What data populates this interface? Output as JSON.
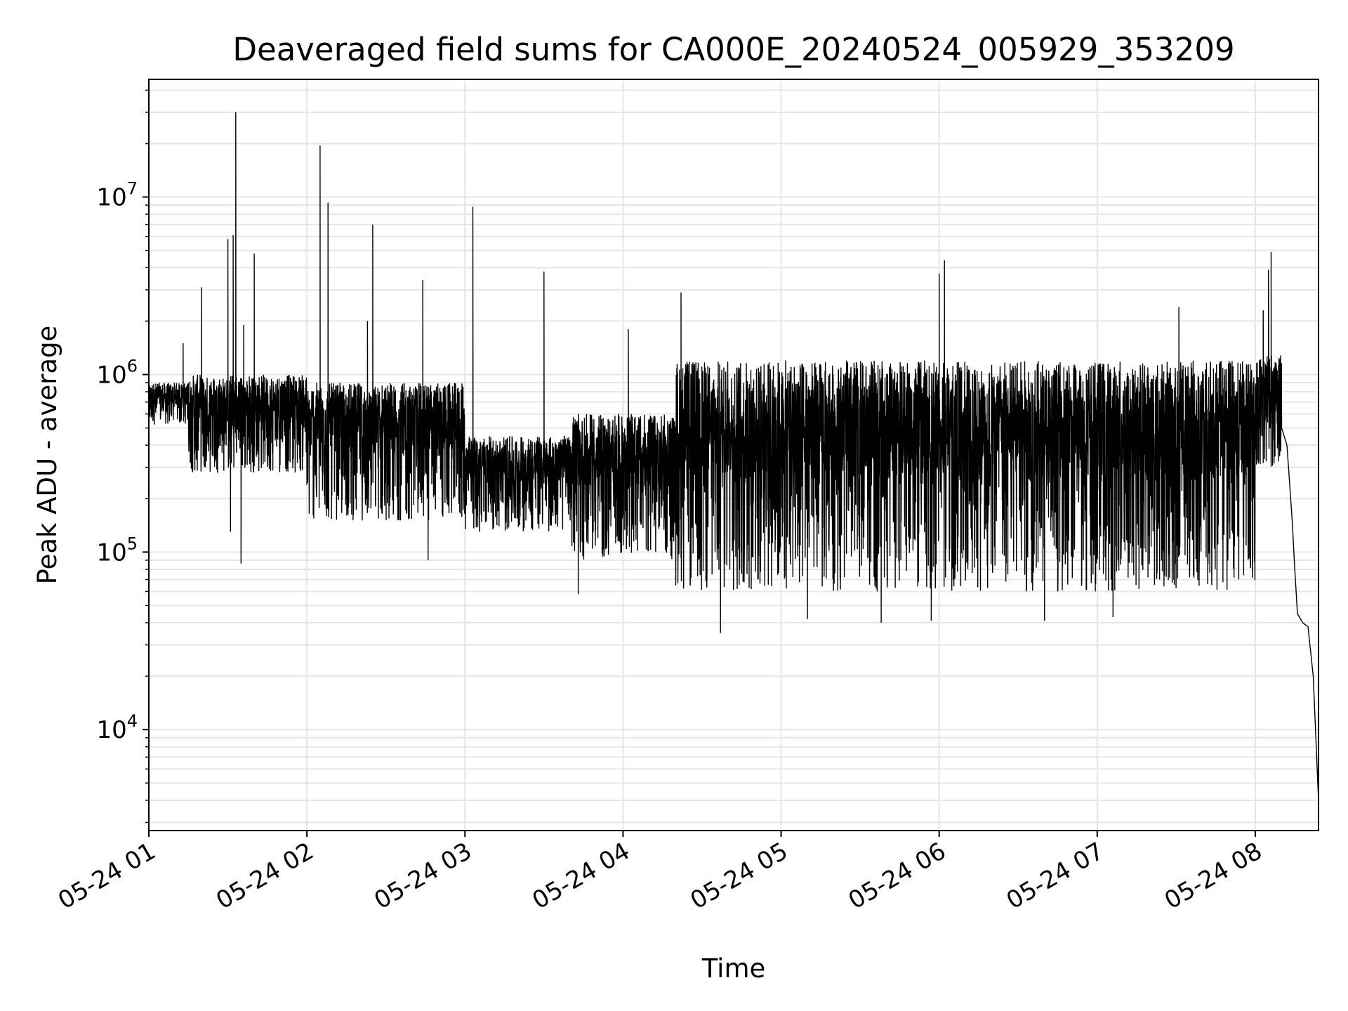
{
  "chart_data": {
    "type": "line",
    "title": "Deaveraged field sums for CA000E_20240524_005929_353209",
    "xlabel": "Time",
    "ylabel": "Peak ADU - average",
    "yscale": "log",
    "xlim": [
      "2024-05-24 01:00",
      "2024-05-24 08:24"
    ],
    "ylim": [
      2700,
      46000000
    ],
    "grid": true,
    "x_ticks": [
      "05-24 01",
      "05-24 02",
      "05-24 03",
      "05-24 04",
      "05-24 05",
      "05-24 06",
      "05-24 07",
      "05-24 08"
    ],
    "y_ticks": [
      {
        "base": "10",
        "exp": "4",
        "value": 10000
      },
      {
        "base": "10",
        "exp": "5",
        "value": 100000
      },
      {
        "base": "10",
        "exp": "6",
        "value": 1000000
      },
      {
        "base": "10",
        "exp": "7",
        "value": 10000000
      }
    ],
    "line_color": "#000000",
    "series": [
      {
        "segments": [
          {
            "from": "2024-05-24 01:00",
            "to": "2024-05-24 01:15",
            "low": 520000,
            "high": 900000
          },
          {
            "from": "2024-05-24 01:15",
            "to": "2024-05-24 02:00",
            "low": 280000,
            "high": 1000000
          },
          {
            "from": "2024-05-24 02:00",
            "to": "2024-05-24 03:00",
            "low": 150000,
            "high": 900000
          },
          {
            "from": "2024-05-24 03:00",
            "to": "2024-05-24 03:40",
            "low": 130000,
            "high": 450000
          },
          {
            "from": "2024-05-24 03:40",
            "to": "2024-05-24 04:20",
            "low": 90000,
            "high": 600000
          },
          {
            "from": "2024-05-24 04:20",
            "to": "2024-05-24 08:00",
            "low": 60000,
            "high": 1200000
          },
          {
            "from": "2024-05-24 08:00",
            "to": "2024-05-24 08:10",
            "low": 300000,
            "high": 1300000
          }
        ],
        "spikes": [
          {
            "x": "2024-05-24 01:13",
            "y": 1500000
          },
          {
            "x": "2024-05-24 01:20",
            "y": 3100000
          },
          {
            "x": "2024-05-24 01:30",
            "y": 5800000
          },
          {
            "x": "2024-05-24 01:32",
            "y": 6100000
          },
          {
            "x": "2024-05-24 01:33",
            "y": 30000000
          },
          {
            "x": "2024-05-24 01:36",
            "y": 1900000
          },
          {
            "x": "2024-05-24 01:40",
            "y": 4800000
          },
          {
            "x": "2024-05-24 02:05",
            "y": 19500000
          },
          {
            "x": "2024-05-24 02:08",
            "y": 9300000
          },
          {
            "x": "2024-05-24 02:23",
            "y": 2000000
          },
          {
            "x": "2024-05-24 02:25",
            "y": 7000000
          },
          {
            "x": "2024-05-24 02:44",
            "y": 3400000
          },
          {
            "x": "2024-05-24 03:03",
            "y": 8800000
          },
          {
            "x": "2024-05-24 03:30",
            "y": 3800000
          },
          {
            "x": "2024-05-24 04:02",
            "y": 1800000
          },
          {
            "x": "2024-05-24 04:22",
            "y": 2900000
          },
          {
            "x": "2024-05-24 06:00",
            "y": 3700000
          },
          {
            "x": "2024-05-24 06:02",
            "y": 4400000
          },
          {
            "x": "2024-05-24 07:31",
            "y": 2400000
          },
          {
            "x": "2024-05-24 08:03",
            "y": 2300000
          },
          {
            "x": "2024-05-24 08:05",
            "y": 3900000
          },
          {
            "x": "2024-05-24 08:06",
            "y": 4900000
          }
        ],
        "dips": [
          {
            "x": "2024-05-24 01:31",
            "y": 130000
          },
          {
            "x": "2024-05-24 01:35",
            "y": 86000
          },
          {
            "x": "2024-05-24 02:46",
            "y": 90000
          },
          {
            "x": "2024-05-24 03:43",
            "y": 58000
          },
          {
            "x": "2024-05-24 04:37",
            "y": 35000
          },
          {
            "x": "2024-05-24 05:10",
            "y": 42000
          },
          {
            "x": "2024-05-24 05:38",
            "y": 40000
          },
          {
            "x": "2024-05-24 05:57",
            "y": 41000
          },
          {
            "x": "2024-05-24 06:40",
            "y": 41000
          },
          {
            "x": "2024-05-24 07:06",
            "y": 43000
          }
        ],
        "tail": [
          {
            "x": "2024-05-24 08:08",
            "y": 800000
          },
          {
            "x": "2024-05-24 08:10",
            "y": 500000
          },
          {
            "x": "2024-05-24 08:12",
            "y": 400000
          },
          {
            "x": "2024-05-24 08:13",
            "y": 250000
          },
          {
            "x": "2024-05-24 08:14",
            "y": 150000
          },
          {
            "x": "2024-05-24 08:15",
            "y": 80000
          },
          {
            "x": "2024-05-24 08:16",
            "y": 45000
          },
          {
            "x": "2024-05-24 08:18",
            "y": 40000
          },
          {
            "x": "2024-05-24 08:20",
            "y": 38000
          },
          {
            "x": "2024-05-24 08:22",
            "y": 20000
          },
          {
            "x": "2024-05-24 08:24",
            "y": 4000
          }
        ]
      }
    ]
  }
}
